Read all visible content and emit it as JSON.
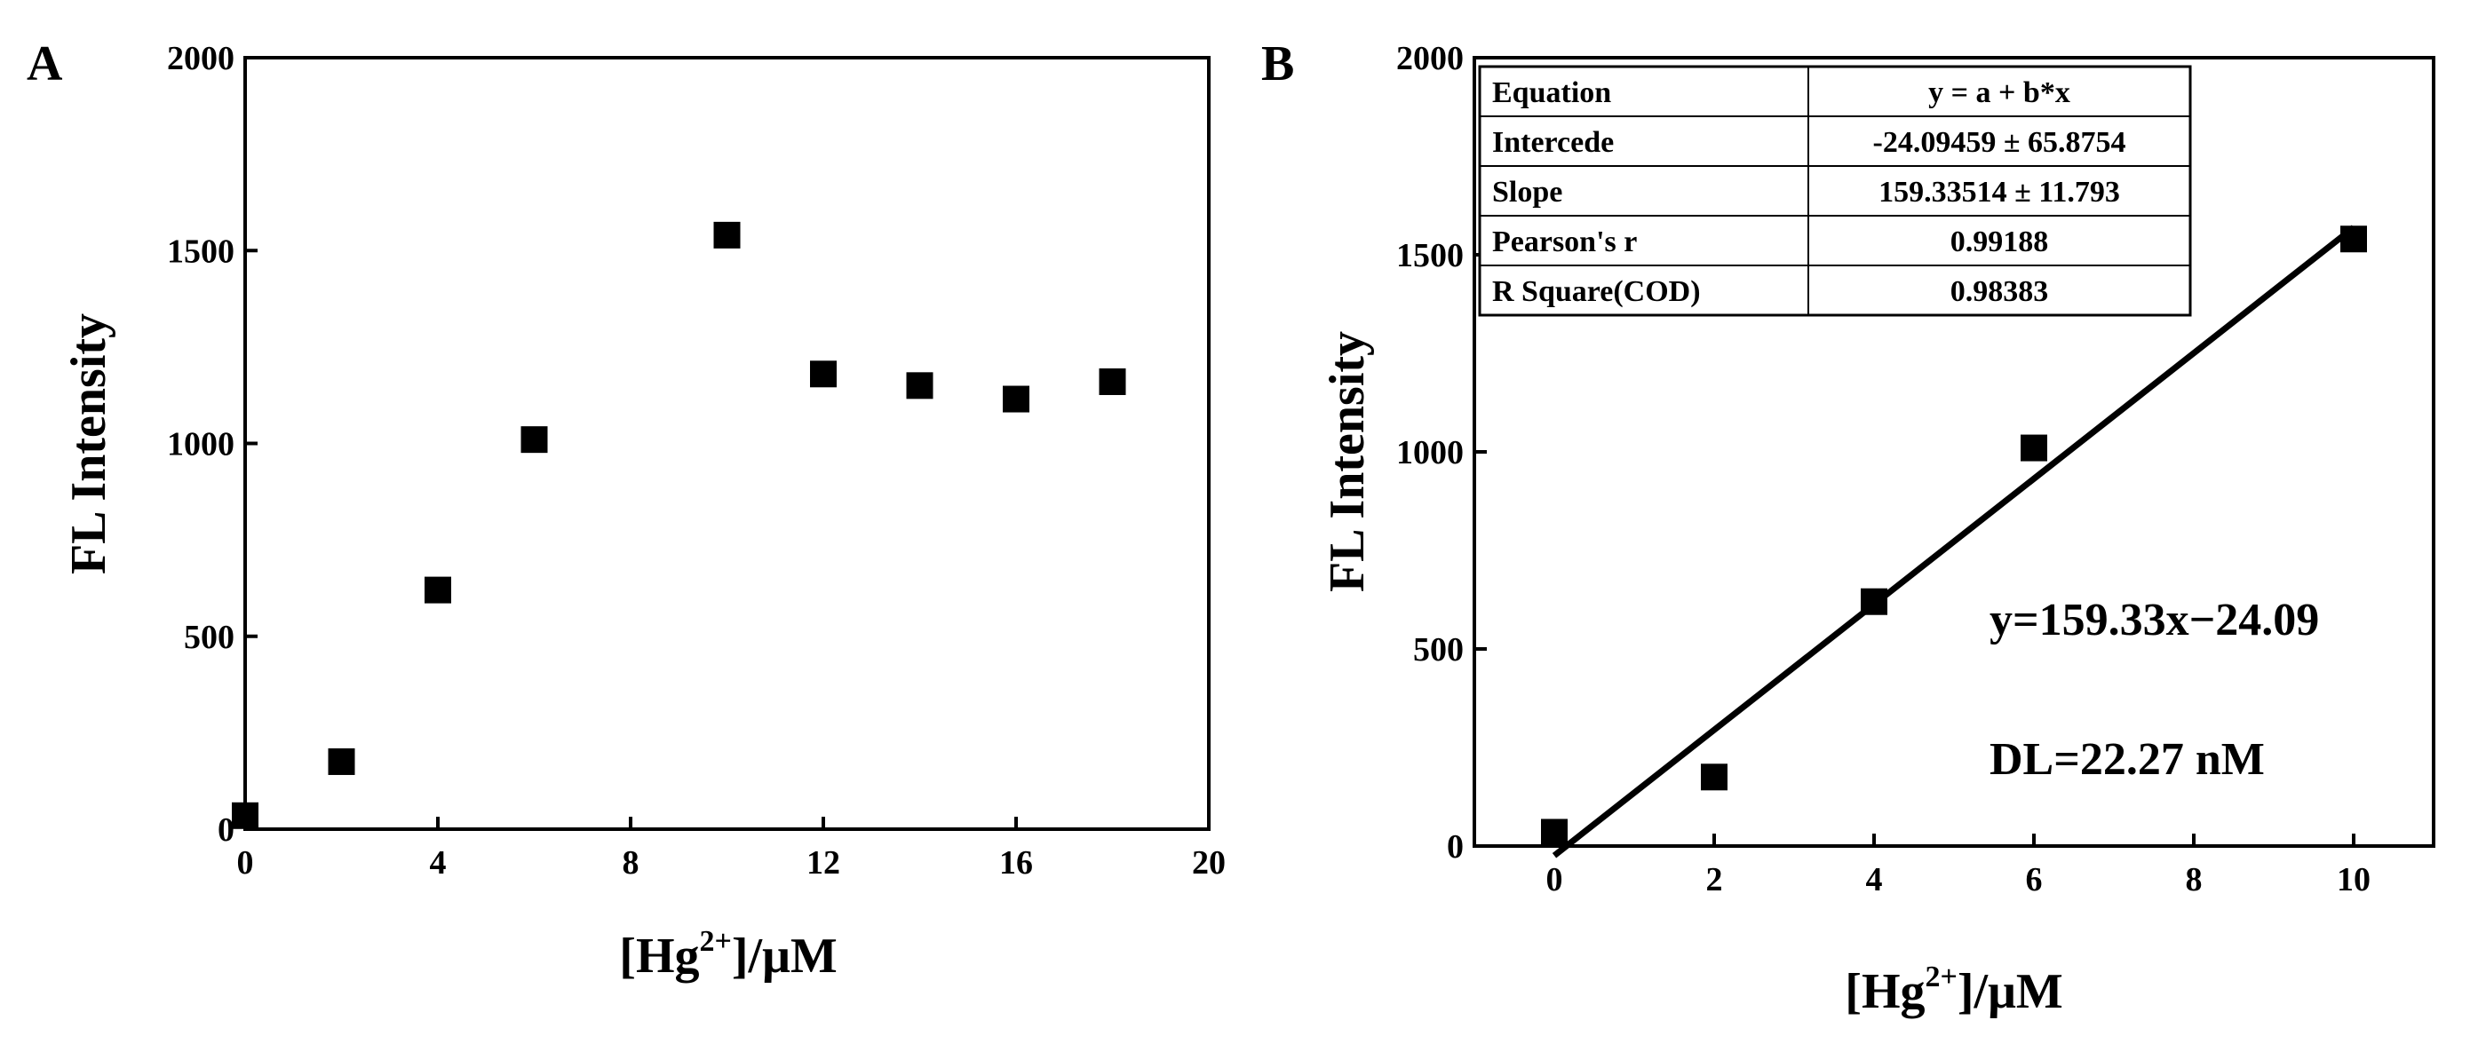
{
  "chart_data": [
    {
      "panel": "A",
      "type": "scatter",
      "title": "",
      "xlabel": "[Hg2+]/μM",
      "xlabel_parts": {
        "pre": "[Hg",
        "sup": "2+",
        "post": "]/μM"
      },
      "ylabel": "FL Intensity",
      "xlim": [
        0,
        20
      ],
      "ylim": [
        0,
        2000
      ],
      "xticks": [
        0,
        4,
        8,
        12,
        16,
        20
      ],
      "yticks": [
        0,
        500,
        1000,
        1500,
        2000
      ],
      "series": [
        {
          "name": "data",
          "marker": "square",
          "x": [
            0,
            2,
            4,
            6,
            10,
            12,
            14,
            16,
            18
          ],
          "y": [
            35,
            175,
            620,
            1010,
            1540,
            1180,
            1150,
            1115,
            1160
          ]
        }
      ]
    },
    {
      "panel": "B",
      "type": "scatter",
      "title": "",
      "xlabel": "[Hg2+]/μM",
      "xlabel_parts": {
        "pre": "[Hg",
        "sup": "2+",
        "post": "]/μM"
      },
      "ylabel": "FL Intensity",
      "xlim": [
        -1,
        11
      ],
      "ylim": [
        0,
        2000
      ],
      "xticks": [
        0,
        2,
        4,
        6,
        8,
        10
      ],
      "yticks": [
        0,
        500,
        1000,
        1500,
        2000
      ],
      "series": [
        {
          "name": "data",
          "marker": "square",
          "x": [
            0,
            2,
            4,
            6,
            10
          ],
          "y": [
            35,
            175,
            620,
            1010,
            1540
          ]
        }
      ],
      "fit": {
        "intercept": -24.09459,
        "slope": 159.33514,
        "x_range": [
          0,
          10
        ]
      },
      "fit_table": [
        [
          "Equation",
          "y = a + b*x"
        ],
        [
          "Intercede",
          "-24.09459 ± 65.8754"
        ],
        [
          "Slope",
          "159.33514 ± 11.793"
        ],
        [
          "Pearson's r",
          "0.99188"
        ],
        [
          "R Square(COD)",
          "0.98383"
        ]
      ],
      "annotations": [
        "y=159.33x−24.09",
        "DL=22.27 nM"
      ]
    }
  ]
}
